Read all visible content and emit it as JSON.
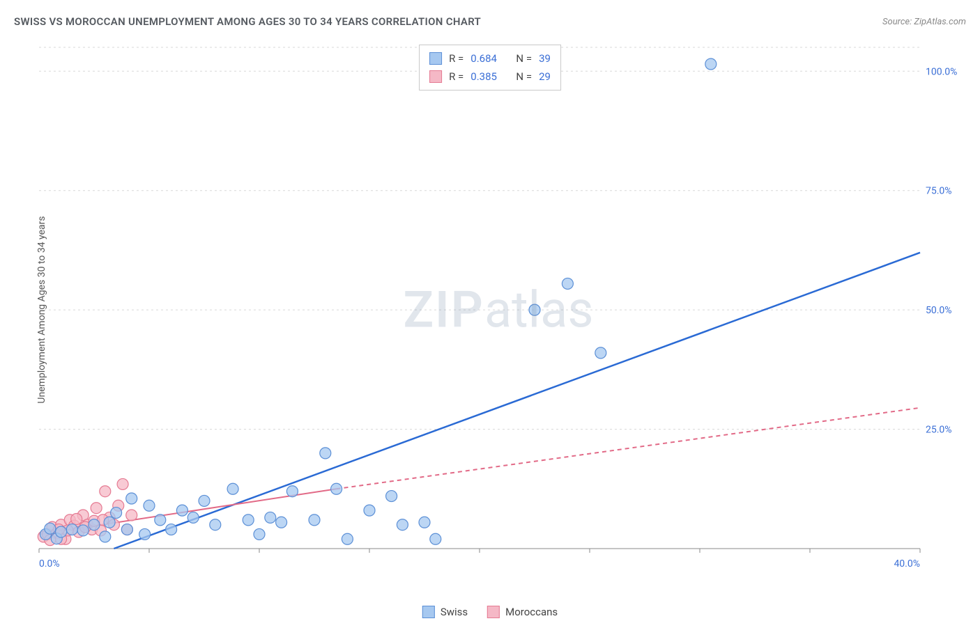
{
  "title": "SWISS VS MOROCCAN UNEMPLOYMENT AMONG AGES 30 TO 34 YEARS CORRELATION CHART",
  "source": "Source: ZipAtlas.com",
  "ylabel": "Unemployment Among Ages 30 to 34 years",
  "watermark_zip": "ZIP",
  "watermark_atlas": "atlas",
  "chart": {
    "type": "scatter",
    "xlim": [
      0,
      40
    ],
    "ylim": [
      0,
      105
    ],
    "x_ticks": [
      0,
      5,
      10,
      15,
      20,
      25,
      30,
      35,
      40
    ],
    "x_tick_labels": {
      "0": "0.0%",
      "40": "40.0%"
    },
    "y_ticks": [
      25,
      50,
      75,
      100
    ],
    "y_tick_labels": {
      "25": "25.0%",
      "50": "50.0%",
      "75": "75.0%",
      "100": "100.0%"
    },
    "grid_color": "#d8d8d8",
    "axis_color": "#888888",
    "tick_label_color": "#3b6fd6",
    "tick_label_fontsize": 14,
    "background_color": "#ffffff",
    "series": [
      {
        "name": "Swiss",
        "marker_fill": "#a6c8f0",
        "marker_stroke": "#5b8fd6",
        "marker_radius": 8,
        "marker_opacity": 0.75,
        "line_color": "#2a6ad4",
        "line_width": 2.5,
        "line_dash": "none",
        "R": "0.684",
        "N": "39",
        "points": [
          [
            0.3,
            3.0
          ],
          [
            0.5,
            4.2
          ],
          [
            0.8,
            2.1
          ],
          [
            1.0,
            3.5
          ],
          [
            1.5,
            4.0
          ],
          [
            2.0,
            3.8
          ],
          [
            2.5,
            5.0
          ],
          [
            3.0,
            2.5
          ],
          [
            3.5,
            7.5
          ],
          [
            4.0,
            4.0
          ],
          [
            4.2,
            10.5
          ],
          [
            4.8,
            3.0
          ],
          [
            5.5,
            6.0
          ],
          [
            6.0,
            4.0
          ],
          [
            6.5,
            8.0
          ],
          [
            7.0,
            6.5
          ],
          [
            7.5,
            10.0
          ],
          [
            8.0,
            5.0
          ],
          [
            8.8,
            12.5
          ],
          [
            9.5,
            6.0
          ],
          [
            10.0,
            3.0
          ],
          [
            10.5,
            6.5
          ],
          [
            11.0,
            5.5
          ],
          [
            11.5,
            12.0
          ],
          [
            12.5,
            6.0
          ],
          [
            13.0,
            20.0
          ],
          [
            13.5,
            12.5
          ],
          [
            14.0,
            2.0
          ],
          [
            15.0,
            8.0
          ],
          [
            16.0,
            11.0
          ],
          [
            16.5,
            5.0
          ],
          [
            17.5,
            5.5
          ],
          [
            18.0,
            2.0
          ],
          [
            22.5,
            50.0
          ],
          [
            24.0,
            55.5
          ],
          [
            25.5,
            41.0
          ],
          [
            30.5,
            101.5
          ],
          [
            3.2,
            5.5
          ],
          [
            5.0,
            9.0
          ]
        ],
        "trend": [
          [
            3.4,
            0
          ],
          [
            40,
            62
          ]
        ]
      },
      {
        "name": "Moroccans",
        "marker_fill": "#f5b8c6",
        "marker_stroke": "#e57a92",
        "marker_radius": 8,
        "marker_opacity": 0.75,
        "line_color": "#e26a87",
        "line_width": 2,
        "line_dash": "6,5",
        "R": "0.385",
        "N": "29",
        "points": [
          [
            0.2,
            2.5
          ],
          [
            0.4,
            3.0
          ],
          [
            0.6,
            4.5
          ],
          [
            0.8,
            3.2
          ],
          [
            1.0,
            5.0
          ],
          [
            1.2,
            2.0
          ],
          [
            1.4,
            6.0
          ],
          [
            1.6,
            4.8
          ],
          [
            1.8,
            3.5
          ],
          [
            2.0,
            7.0
          ],
          [
            2.2,
            5.0
          ],
          [
            2.4,
            4.0
          ],
          [
            2.6,
            8.5
          ],
          [
            2.8,
            3.8
          ],
          [
            3.0,
            12.0
          ],
          [
            3.2,
            6.5
          ],
          [
            3.4,
            5.0
          ],
          [
            3.8,
            13.5
          ],
          [
            4.0,
            4.0
          ],
          [
            4.2,
            7.0
          ],
          [
            1.0,
            2.0
          ],
          [
            1.3,
            3.8
          ],
          [
            1.7,
            6.2
          ],
          [
            2.1,
            4.5
          ],
          [
            2.5,
            5.8
          ],
          [
            0.5,
            1.8
          ],
          [
            0.9,
            4.0
          ],
          [
            3.6,
            9.0
          ],
          [
            2.9,
            6.0
          ]
        ],
        "trend_solid": [
          [
            0,
            3
          ],
          [
            13.5,
            12.5
          ]
        ],
        "trend_dashed": [
          [
            13.5,
            12.5
          ],
          [
            40,
            29.5
          ]
        ]
      }
    ]
  },
  "stats_labels": {
    "R": "R =",
    "N": "N ="
  },
  "legend": {
    "swiss": "Swiss",
    "moroccans": "Moroccans"
  }
}
